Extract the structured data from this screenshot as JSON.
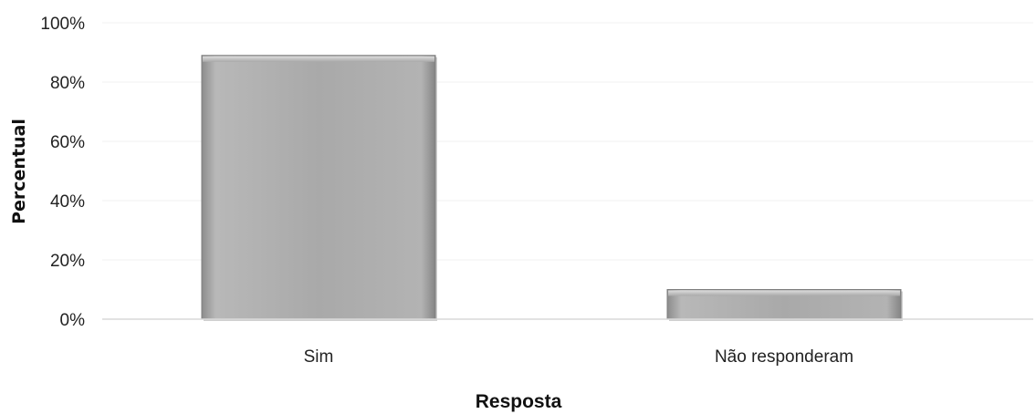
{
  "chart_data": {
    "type": "bar",
    "categories": [
      "Sim",
      "Não responderam"
    ],
    "values": [
      89,
      10
    ],
    "xlabel": "Resposta",
    "ylabel": "Percentual",
    "ylim": [
      0,
      100
    ],
    "yticks": [
      "0%",
      "20%",
      "40%",
      "60%",
      "80%",
      "100%"
    ],
    "ytick_values": [
      0,
      20,
      40,
      60,
      80,
      100
    ],
    "grid": true,
    "bar_color": "#a6a6a6"
  }
}
